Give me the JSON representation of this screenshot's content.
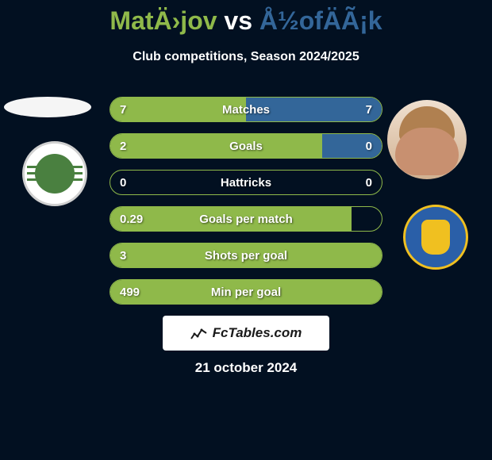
{
  "title": {
    "player1": "MatÄ›jov",
    "vs": "vs",
    "player2": "Å½ofÄÃ¡k"
  },
  "subtitle": "Club competitions, Season 2024/2025",
  "colors": {
    "player1": "#8fb94a",
    "player2": "#336699",
    "background": "#021021",
    "text": "#ffffff"
  },
  "stats": [
    {
      "label": "Matches",
      "left_value": "7",
      "right_value": "7",
      "left_pct": 50,
      "right_pct": 50
    },
    {
      "label": "Goals",
      "left_value": "2",
      "right_value": "0",
      "left_pct": 78,
      "right_pct": 22
    },
    {
      "label": "Hattricks",
      "left_value": "0",
      "right_value": "0",
      "left_pct": 0,
      "right_pct": 0
    },
    {
      "label": "Goals per match",
      "left_value": "0.29",
      "right_value": "",
      "left_pct": 89,
      "right_pct": 0
    },
    {
      "label": "Shots per goal",
      "left_value": "3",
      "right_value": "",
      "left_pct": 100,
      "right_pct": 0
    },
    {
      "label": "Min per goal",
      "left_value": "499",
      "right_value": "",
      "left_pct": 100,
      "right_pct": 0
    }
  ],
  "footer": {
    "link_text": "FcTables.com",
    "date": "21 october 2024"
  },
  "bar_style": {
    "height": 32,
    "border_radius": 16,
    "gap": 14,
    "font_size": 15
  }
}
